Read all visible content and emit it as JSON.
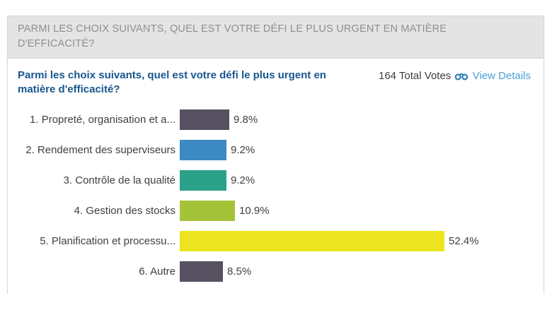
{
  "header": {
    "title": "PARMI LES CHOIX SUIVANTS, QUEL EST VOTRE DÉFI LE PLUS URGENT EN MATIÈRE D'EFFICACITÉ?"
  },
  "poll": {
    "question": "Parmi les choix suivants, quel est votre défi le plus urgent en matière d'efficacité?",
    "total_votes": "164 Total Votes",
    "view_details_label": "View Details",
    "view_details_icon": "binoculars-icon",
    "link_color": "#4aa0d5",
    "question_color": "#17568f"
  },
  "chart_data": {
    "type": "bar",
    "orientation": "horizontal",
    "title": "Parmi les choix suivants, quel est votre défi le plus urgent en matière d'efficacité?",
    "categories": [
      "1. Propreté, organisation et a...",
      "2. Rendement des superviseurs",
      "3. Contrôle de la qualité",
      "4. Gestion des stocks",
      "5. Planification et processu...",
      "6. Autre"
    ],
    "values": [
      9.8,
      9.2,
      9.2,
      10.9,
      52.4,
      8.5
    ],
    "value_labels": [
      "9.8%",
      "9.2%",
      "9.2%",
      "10.9%",
      "52.4%",
      "8.5%"
    ],
    "bar_colors": [
      "#565060",
      "#3d89c4",
      "#2ba189",
      "#a5c339",
      "#ebe41f",
      "#565060"
    ],
    "xlim": [
      0,
      100
    ],
    "grid": false,
    "legend": false
  }
}
